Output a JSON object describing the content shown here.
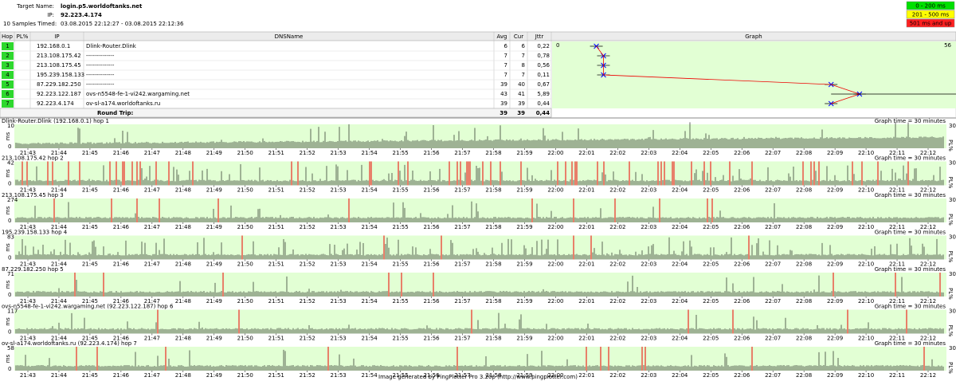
{
  "header": {
    "target_label": "Target Name:",
    "target": "login.p5.worldoftanks.net",
    "ip_label": "IP:",
    "ip": "92.223.4.174",
    "samples": "10 Samples Timed:",
    "range": "03.08.2015 22:12:27 - 03.08.2015 22:12:36"
  },
  "legend": [
    "0 - 200 ms",
    "201 - 500 ms",
    "501 ms and up"
  ],
  "table": {
    "columns": [
      "Hop",
      "PL%",
      "IP",
      "DNSName",
      "Avg",
      "Cur",
      "Jttr",
      "Graph"
    ],
    "rows": [
      {
        "hop": 1,
        "ip": "192.168.0.1",
        "dns": "Dlink-Router.Dlink",
        "avg": 6,
        "cur": 6,
        "jttr": "0,22"
      },
      {
        "hop": 2,
        "ip": "213.108.175.42",
        "dns": "--------------",
        "avg": 7,
        "cur": 7,
        "jttr": "0,78"
      },
      {
        "hop": 3,
        "ip": "213.108.175.45",
        "dns": "--------------",
        "avg": 7,
        "cur": 8,
        "jttr": "0,56"
      },
      {
        "hop": 4,
        "ip": "195.239.158.133",
        "dns": "--------------",
        "avg": 7,
        "cur": 7,
        "jttr": "0,11"
      },
      {
        "hop": 5,
        "ip": "87.229.182.250",
        "dns": "--------------",
        "avg": 39,
        "cur": 40,
        "jttr": "0,67"
      },
      {
        "hop": 6,
        "ip": "92.223.122.187",
        "dns": "ovs-n5548-fe-1-vi242.wargaming.net",
        "avg": 43,
        "cur": 41,
        "jttr": "5,89"
      },
      {
        "hop": 7,
        "ip": "92.223.4.174",
        "dns": "ov-sl-a174.worldoftanks.ru",
        "avg": 39,
        "cur": 39,
        "jttr": "0,44"
      }
    ],
    "round_trip": {
      "label": "Round Trip:",
      "avg": 39,
      "cur": 39,
      "jttr": "0,44"
    },
    "graph_min": 0,
    "graph_max": 56
  },
  "timelines": {
    "time_labels": [
      "21:43",
      "21:44",
      "21:45",
      "21:46",
      "21:47",
      "21:48",
      "21:49",
      "21:50",
      "21:51",
      "21:52",
      "21:53",
      "21:54",
      "21:55",
      "21:56",
      "21:57",
      "21:58",
      "21:59",
      "22:00",
      "22:01",
      "22:02",
      "22:03",
      "22:04",
      "22:05",
      "22:06",
      "22:07",
      "22:08",
      "22:09",
      "22:10",
      "22:11",
      "22:12"
    ],
    "graph_time": "Graph time = 30 minutes",
    "pl_max": 30,
    "pl_label": "PL%",
    "unit": "ms",
    "y_min": 0,
    "graphs": [
      {
        "title": "Dlink-Router.Dlink (192.168.0.1) hop 1",
        "y_max": 10
      },
      {
        "title": "213.108.175.42 hop 2",
        "y_max": 42
      },
      {
        "title": "213.108.175.45 hop 3",
        "y_max": 274
      },
      {
        "title": "195.239.158.133 hop 4",
        "y_max": 83
      },
      {
        "title": "87.229.182.250 hop 5",
        "y_max": 71
      },
      {
        "title": "ovs-n5548-fe-1-vi242.wargaming.net (92.223.122.187) hop 6",
        "y_max": 117
      },
      {
        "title": "ov-sl-a174.worldoftanks.ru (92.223.4.174) hop 7",
        "y_max": 58
      }
    ]
  },
  "footer": "Image generated by PingPlotter Pro 3.20p (http://www.pingplotter.com)"
}
